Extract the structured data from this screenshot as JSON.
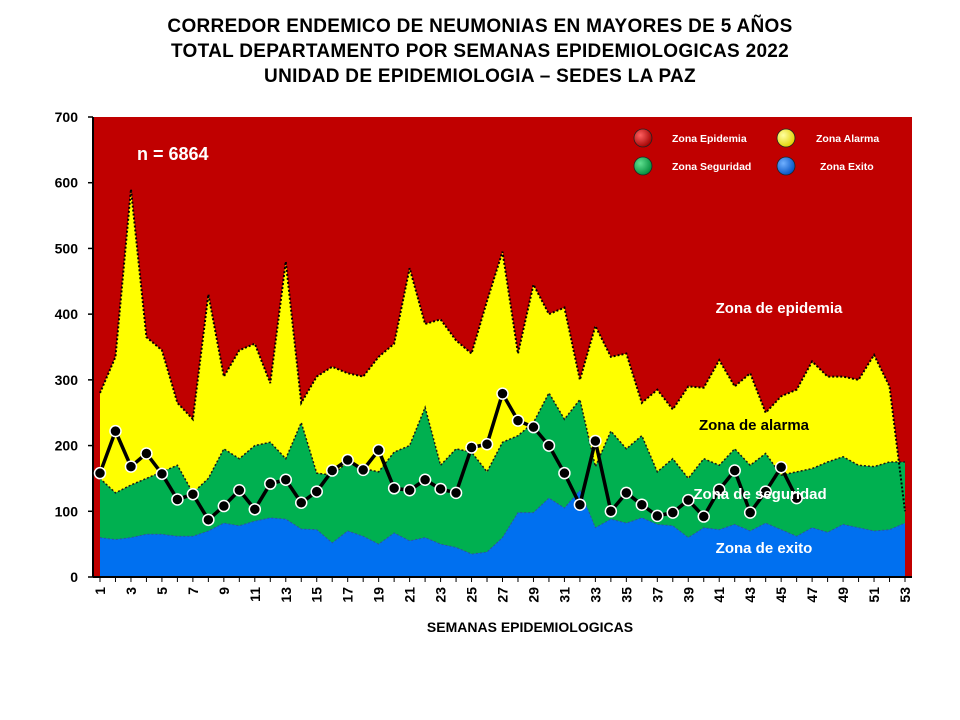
{
  "title_lines": [
    "CORREDOR ENDEMICO DE NEUMONIAS EN MAYORES DE 5 AÑOS",
    "TOTAL DEPARTAMENTO POR SEMANAS EPIDEMIOLOGICAS 2022",
    "UNIDAD DE EPIDEMIOLOGIA – SEDES LA PAZ"
  ],
  "chart_data": {
    "type": "area",
    "title": "CORREDOR ENDEMICO DE NEUMONIAS EN MAYORES DE 5 AÑOS",
    "xlabel": "SEMANAS EPIDEMIOLOGICAS",
    "ylabel": "",
    "ylim": [
      0,
      700
    ],
    "yticks": [
      0,
      100,
      200,
      300,
      400,
      500,
      600,
      700
    ],
    "x": [
      1,
      2,
      3,
      4,
      5,
      6,
      7,
      8,
      9,
      10,
      11,
      12,
      13,
      14,
      15,
      16,
      17,
      18,
      19,
      20,
      21,
      22,
      23,
      24,
      25,
      26,
      27,
      28,
      29,
      30,
      31,
      32,
      33,
      34,
      35,
      36,
      37,
      38,
      39,
      40,
      41,
      42,
      43,
      44,
      45,
      46,
      47,
      48,
      49,
      50,
      51,
      52,
      53
    ],
    "xtick_labels": [
      "1",
      "3",
      "5",
      "7",
      "9",
      "11",
      "13",
      "15",
      "17",
      "19",
      "21",
      "23",
      "25",
      "27",
      "29",
      "31",
      "33",
      "35",
      "37",
      "39",
      "41",
      "43",
      "45",
      "47",
      "49",
      "51",
      "53"
    ],
    "annotation": "n = 6864",
    "zones": {
      "exito": [
        60,
        57,
        60,
        65,
        65,
        62,
        62,
        70,
        82,
        78,
        85,
        90,
        88,
        73,
        72,
        52,
        70,
        62,
        50,
        67,
        55,
        60,
        50,
        45,
        35,
        38,
        60,
        98,
        98,
        120,
        105,
        132,
        75,
        88,
        82,
        90,
        80,
        78,
        60,
        75,
        72,
        80,
        70,
        82,
        72,
        62,
        75,
        68,
        80,
        75,
        70,
        72,
        82
      ],
      "seguridad": [
        150,
        128,
        140,
        150,
        160,
        170,
        128,
        150,
        195,
        180,
        200,
        205,
        180,
        235,
        158,
        155,
        175,
        165,
        160,
        190,
        200,
        258,
        170,
        195,
        190,
        160,
        205,
        215,
        235,
        280,
        240,
        270,
        168,
        222,
        195,
        215,
        160,
        180,
        150,
        180,
        170,
        195,
        170,
        188,
        155,
        160,
        165,
        175,
        183,
        170,
        168,
        175,
        175
      ],
      "alarma": [
        280,
        335,
        590,
        365,
        345,
        265,
        240,
        430,
        305,
        345,
        355,
        295,
        480,
        265,
        305,
        320,
        310,
        305,
        335,
        355,
        470,
        385,
        392,
        360,
        340,
        420,
        495,
        340,
        445,
        400,
        410,
        300,
        382,
        335,
        340,
        265,
        285,
        255,
        290,
        288,
        330,
        290,
        310,
        250,
        275,
        285,
        328,
        305,
        305,
        300,
        338,
        290,
        100
      ],
      "epidemia": 700
    },
    "series": [
      {
        "name": "",
        "x": [
          1,
          2,
          3,
          4,
          5,
          6,
          7,
          8,
          9,
          10,
          11,
          12,
          13,
          14,
          15,
          16,
          17,
          18,
          19,
          20,
          21,
          22,
          23,
          24,
          25,
          26,
          27,
          28,
          29,
          30,
          31,
          32,
          33,
          34,
          35,
          36,
          37,
          38,
          39,
          40,
          41,
          42,
          43,
          44,
          45,
          46
        ],
        "values": [
          158,
          222,
          168,
          188,
          157,
          118,
          126,
          87,
          108,
          132,
          103,
          142,
          148,
          113,
          130,
          162,
          178,
          163,
          193,
          135,
          132,
          148,
          134,
          128,
          197,
          202,
          279,
          238,
          228,
          200,
          158,
          110,
          207,
          100,
          128,
          110,
          93,
          98,
          117,
          92,
          133,
          162,
          98,
          130,
          167,
          120
        ]
      }
    ],
    "legend": {
      "placement": "top-right",
      "items": [
        {
          "label": "Zona Epidemia",
          "color": "#c00000"
        },
        {
          "label": "Zona Alarma",
          "color": "#ffff00"
        },
        {
          "label": "Zona Seguridad",
          "color": "#00b050"
        },
        {
          "label": "Zona Exito",
          "color": "#0070f0"
        }
      ]
    },
    "zone_labels": {
      "epidemia": "Zona de epidemia",
      "alarma": "Zona de alarma",
      "seguridad": "Zona de  seguridad",
      "exito": "Zona de exito"
    },
    "colors": {
      "epidemia": "#c00000",
      "alarma": "#ffff00",
      "seguridad": "#00b050",
      "exito": "#0070f0",
      "line": "#000000"
    }
  }
}
